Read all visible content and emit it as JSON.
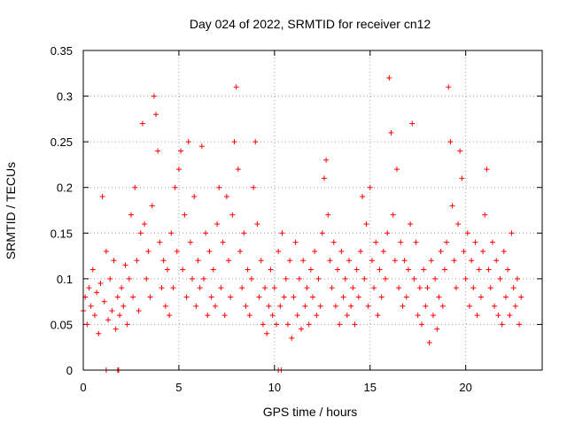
{
  "chart_data": {
    "type": "scatter",
    "title": "Day 024 of 2022, SRMTID for receiver cn12",
    "xlabel": "GPS time / hours",
    "ylabel": "SRMTID / TECUs",
    "xlim": [
      0,
      24
    ],
    "ylim": [
      0,
      0.35
    ],
    "xticks": [
      0,
      5,
      10,
      15,
      20
    ],
    "xtick_labels": [
      "0",
      "5",
      "10",
      "15",
      "20"
    ],
    "yticks": [
      0,
      0.05,
      0.1,
      0.15,
      0.2,
      0.25,
      0.3,
      0.35
    ],
    "ytick_labels": [
      "0",
      "0.05",
      "0.1",
      "0.15",
      "0.2",
      "0.25",
      "0.3",
      "0.35"
    ],
    "grid": true,
    "marker": "+",
    "series": [
      {
        "name": "SRMTID",
        "color": "#ff0000",
        "points": [
          [
            0.0,
            0.065
          ],
          [
            0.1,
            0.08
          ],
          [
            0.2,
            0.05
          ],
          [
            0.3,
            0.09
          ],
          [
            0.4,
            0.07
          ],
          [
            0.5,
            0.11
          ],
          [
            0.6,
            0.06
          ],
          [
            0.7,
            0.085
          ],
          [
            0.8,
            0.04
          ],
          [
            0.9,
            0.095
          ],
          [
            1.0,
            0.19
          ],
          [
            1.1,
            0.075
          ],
          [
            1.2,
            0.13
          ],
          [
            1.3,
            0.055
          ],
          [
            1.4,
            0.1
          ],
          [
            1.5,
            0.065
          ],
          [
            1.6,
            0.12
          ],
          [
            1.7,
            0.045
          ],
          [
            1.8,
            0.08
          ],
          [
            1.9,
            0.06
          ],
          [
            2.0,
            0.09
          ],
          [
            2.1,
            0.07
          ],
          [
            2.2,
            0.115
          ],
          [
            2.3,
            0.05
          ],
          [
            2.4,
            0.1
          ],
          [
            2.5,
            0.17
          ],
          [
            2.6,
            0.08
          ],
          [
            2.7,
            0.2
          ],
          [
            2.8,
            0.12
          ],
          [
            2.9,
            0.065
          ],
          [
            3.0,
            0.15
          ],
          [
            3.1,
            0.27
          ],
          [
            3.2,
            0.16
          ],
          [
            3.3,
            0.1
          ],
          [
            3.4,
            0.13
          ],
          [
            3.5,
            0.08
          ],
          [
            3.6,
            0.18
          ],
          [
            3.7,
            0.3
          ],
          [
            3.8,
            0.28
          ],
          [
            3.9,
            0.24
          ],
          [
            4.0,
            0.14
          ],
          [
            4.1,
            0.09
          ],
          [
            4.2,
            0.12
          ],
          [
            4.3,
            0.07
          ],
          [
            4.4,
            0.11
          ],
          [
            4.5,
            0.06
          ],
          [
            4.6,
            0.15
          ],
          [
            4.7,
            0.09
          ],
          [
            4.8,
            0.2
          ],
          [
            4.9,
            0.13
          ],
          [
            5.0,
            0.22
          ],
          [
            5.1,
            0.24
          ],
          [
            5.2,
            0.11
          ],
          [
            5.3,
            0.17
          ],
          [
            5.4,
            0.08
          ],
          [
            5.5,
            0.25
          ],
          [
            5.6,
            0.14
          ],
          [
            5.7,
            0.1
          ],
          [
            5.8,
            0.19
          ],
          [
            5.9,
            0.07
          ],
          [
            6.0,
            0.12
          ],
          [
            6.1,
            0.09
          ],
          [
            6.2,
            0.245
          ],
          [
            6.3,
            0.1
          ],
          [
            6.4,
            0.15
          ],
          [
            6.5,
            0.06
          ],
          [
            6.6,
            0.13
          ],
          [
            6.7,
            0.08
          ],
          [
            6.8,
            0.11
          ],
          [
            6.9,
            0.07
          ],
          [
            7.0,
            0.16
          ],
          [
            7.1,
            0.2
          ],
          [
            7.2,
            0.09
          ],
          [
            7.3,
            0.14
          ],
          [
            7.4,
            0.06
          ],
          [
            7.5,
            0.19
          ],
          [
            7.6,
            0.12
          ],
          [
            7.7,
            0.08
          ],
          [
            7.8,
            0.17
          ],
          [
            7.9,
            0.25
          ],
          [
            8.0,
            0.31
          ],
          [
            8.1,
            0.22
          ],
          [
            8.2,
            0.13
          ],
          [
            8.3,
            0.09
          ],
          [
            8.4,
            0.15
          ],
          [
            8.5,
            0.07
          ],
          [
            8.6,
            0.11
          ],
          [
            8.7,
            0.06
          ],
          [
            8.8,
            0.1
          ],
          [
            8.9,
            0.2
          ],
          [
            9.0,
            0.25
          ],
          [
            9.1,
            0.16
          ],
          [
            9.2,
            0.08
          ],
          [
            9.3,
            0.12
          ],
          [
            9.4,
            0.05
          ],
          [
            9.5,
            0.09
          ],
          [
            9.6,
            0.04
          ],
          [
            9.7,
            0.07
          ],
          [
            9.8,
            0.11
          ],
          [
            9.9,
            0.06
          ],
          [
            10.0,
            0.09
          ],
          [
            10.1,
            0.05
          ],
          [
            10.2,
            0.13
          ],
          [
            10.3,
            0.07
          ],
          [
            10.4,
            0.15
          ],
          [
            10.5,
            0.08
          ],
          [
            10.6,
            0.1
          ],
          [
            10.7,
            0.05
          ],
          [
            10.8,
            0.12
          ],
          [
            10.9,
            0.035
          ],
          [
            11.0,
            0.08
          ],
          [
            11.1,
            0.14
          ],
          [
            11.2,
            0.06
          ],
          [
            11.3,
            0.1
          ],
          [
            11.4,
            0.045
          ],
          [
            11.5,
            0.12
          ],
          [
            11.6,
            0.07
          ],
          [
            11.7,
            0.09
          ],
          [
            11.8,
            0.05
          ],
          [
            11.9,
            0.11
          ],
          [
            12.0,
            0.08
          ],
          [
            12.1,
            0.13
          ],
          [
            12.2,
            0.06
          ],
          [
            12.3,
            0.1
          ],
          [
            12.4,
            0.07
          ],
          [
            12.5,
            0.15
          ],
          [
            12.6,
            0.21
          ],
          [
            12.7,
            0.23
          ],
          [
            12.8,
            0.17
          ],
          [
            12.9,
            0.12
          ],
          [
            13.0,
            0.09
          ],
          [
            13.1,
            0.14
          ],
          [
            13.2,
            0.07
          ],
          [
            13.3,
            0.11
          ],
          [
            13.4,
            0.05
          ],
          [
            13.5,
            0.13
          ],
          [
            13.6,
            0.08
          ],
          [
            13.7,
            0.1
          ],
          [
            13.8,
            0.06
          ],
          [
            13.9,
            0.12
          ],
          [
            14.0,
            0.07
          ],
          [
            14.1,
            0.09
          ],
          [
            14.2,
            0.05
          ],
          [
            14.3,
            0.11
          ],
          [
            14.4,
            0.08
          ],
          [
            14.5,
            0.13
          ],
          [
            14.6,
            0.19
          ],
          [
            14.7,
            0.1
          ],
          [
            14.8,
            0.16
          ],
          [
            14.9,
            0.07
          ],
          [
            15.0,
            0.2
          ],
          [
            15.1,
            0.12
          ],
          [
            15.2,
            0.09
          ],
          [
            15.3,
            0.14
          ],
          [
            15.4,
            0.06
          ],
          [
            15.5,
            0.11
          ],
          [
            15.6,
            0.08
          ],
          [
            15.7,
            0.13
          ],
          [
            15.8,
            0.1
          ],
          [
            15.9,
            0.15
          ],
          [
            16.0,
            0.32
          ],
          [
            16.1,
            0.26
          ],
          [
            16.2,
            0.17
          ],
          [
            16.3,
            0.12
          ],
          [
            16.4,
            0.22
          ],
          [
            16.5,
            0.09
          ],
          [
            16.6,
            0.14
          ],
          [
            16.7,
            0.07
          ],
          [
            16.8,
            0.12
          ],
          [
            16.9,
            0.08
          ],
          [
            17.0,
            0.11
          ],
          [
            17.1,
            0.16
          ],
          [
            17.2,
            0.27
          ],
          [
            17.3,
            0.1
          ],
          [
            17.4,
            0.14
          ],
          [
            17.5,
            0.06
          ],
          [
            17.6,
            0.09
          ],
          [
            17.7,
            0.05
          ],
          [
            17.8,
            0.11
          ],
          [
            17.9,
            0.07
          ],
          [
            18.0,
            0.09
          ],
          [
            18.1,
            0.03
          ],
          [
            18.2,
            0.12
          ],
          [
            18.3,
            0.06
          ],
          [
            18.4,
            0.1
          ],
          [
            18.5,
            0.045
          ],
          [
            18.6,
            0.08
          ],
          [
            18.7,
            0.13
          ],
          [
            18.8,
            0.07
          ],
          [
            18.9,
            0.11
          ],
          [
            19.0,
            0.14
          ],
          [
            19.1,
            0.31
          ],
          [
            19.2,
            0.25
          ],
          [
            19.3,
            0.18
          ],
          [
            19.4,
            0.12
          ],
          [
            19.5,
            0.09
          ],
          [
            19.6,
            0.16
          ],
          [
            19.7,
            0.24
          ],
          [
            19.8,
            0.21
          ],
          [
            19.9,
            0.13
          ],
          [
            20.0,
            0.1
          ],
          [
            20.1,
            0.15
          ],
          [
            20.2,
            0.07
          ],
          [
            20.3,
            0.12
          ],
          [
            20.4,
            0.09
          ],
          [
            20.5,
            0.14
          ],
          [
            20.6,
            0.06
          ],
          [
            20.7,
            0.11
          ],
          [
            20.8,
            0.08
          ],
          [
            20.9,
            0.13
          ],
          [
            21.0,
            0.17
          ],
          [
            21.1,
            0.22
          ],
          [
            21.2,
            0.11
          ],
          [
            21.3,
            0.09
          ],
          [
            21.4,
            0.14
          ],
          [
            21.5,
            0.07
          ],
          [
            21.6,
            0.12
          ],
          [
            21.7,
            0.06
          ],
          [
            21.8,
            0.1
          ],
          [
            21.9,
            0.05
          ],
          [
            22.0,
            0.13
          ],
          [
            22.1,
            0.08
          ],
          [
            22.2,
            0.11
          ],
          [
            22.3,
            0.06
          ],
          [
            22.4,
            0.15
          ],
          [
            22.5,
            0.09
          ],
          [
            22.6,
            0.07
          ],
          [
            22.7,
            0.1
          ],
          [
            22.8,
            0.05
          ],
          [
            22.9,
            0.08
          ],
          [
            1.2,
            0.0
          ],
          [
            1.8,
            0.0
          ],
          [
            1.85,
            0.0
          ],
          [
            10.2,
            0.0
          ],
          [
            10.35,
            0.0
          ]
        ]
      }
    ]
  }
}
